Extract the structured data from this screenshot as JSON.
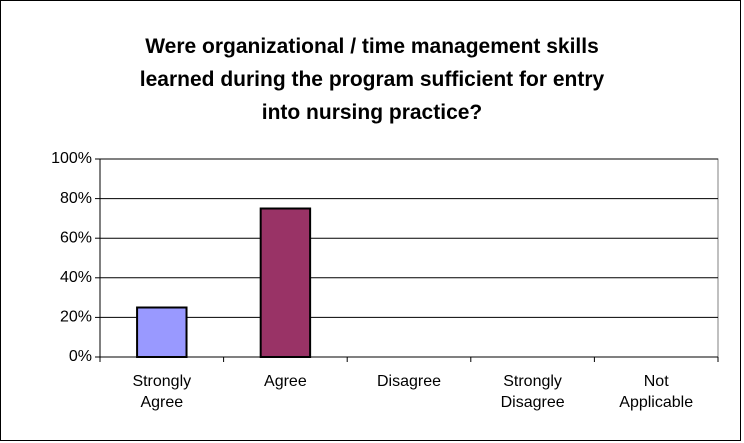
{
  "chart_data": {
    "type": "bar",
    "title": "Were organizational / time management skills learned during the program sufficient for entry into nursing practice?",
    "categories": [
      "Strongly Agree",
      "Agree",
      "Disagree",
      "Strongly Disagree",
      "Not Applicable"
    ],
    "values": [
      25,
      75,
      0,
      0,
      0
    ],
    "colors": [
      "#9999ff",
      "#993366",
      "#9999ff",
      "#993366",
      "#9999ff"
    ],
    "ylim": [
      0,
      100
    ],
    "yticks": [
      {
        "value": 0,
        "label": "0%"
      },
      {
        "value": 20,
        "label": "20%"
      },
      {
        "value": 40,
        "label": "40%"
      },
      {
        "value": 60,
        "label": "60%"
      },
      {
        "value": 80,
        "label": "80%"
      },
      {
        "value": 100,
        "label": "100%"
      }
    ],
    "grid": true
  }
}
